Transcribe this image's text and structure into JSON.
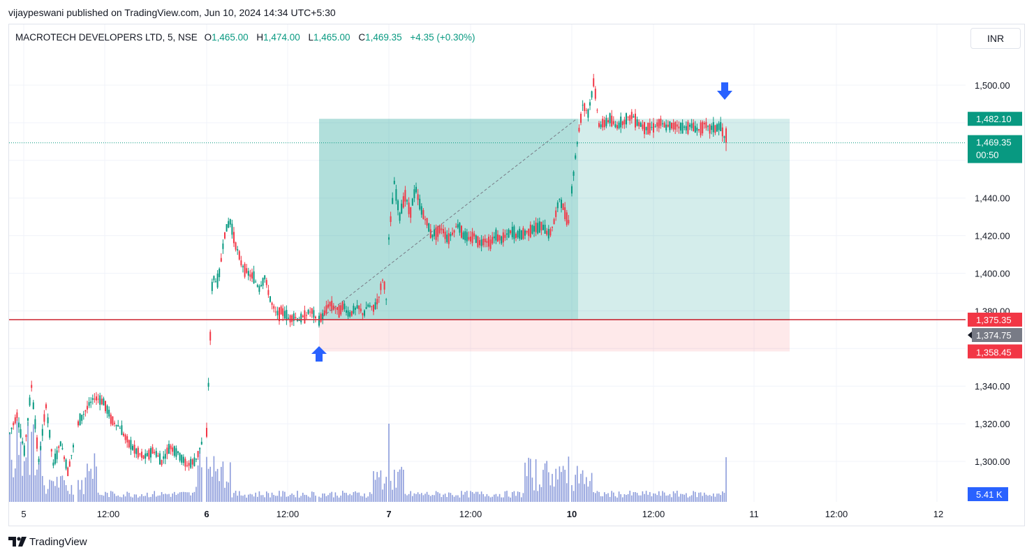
{
  "publisher_line": "vijaypeswani published on TradingView.com, Jun 10, 2024 14:34 UTC+5:30",
  "legend": {
    "symbol": "MACROTECH DEVELOPERS LTD, 5, NSE",
    "open_label": "O",
    "open": "1,465.00",
    "high_label": "H",
    "high": "1,474.00",
    "low_label": "L",
    "low": "1,465.00",
    "close_label": "C",
    "close": "1,469.35",
    "change": "+4.35 (+0.30%)"
  },
  "currency": "INR",
  "footer": {
    "brand": "TradingView",
    "icon": "tradingview-logo-icon"
  },
  "colors": {
    "up": "#089981",
    "down": "#f23645",
    "volume": "#6479cf",
    "accent": "#2962ff",
    "profit_zone": "#26a69a",
    "loss_zone": "#f7525f",
    "support_line": "#d0343f"
  },
  "chart_data": {
    "type": "candlestick",
    "x_axis": {
      "tick_labels": [
        "5",
        "12:00",
        "6",
        "12:00",
        "7",
        "12:00",
        "10",
        "12:00",
        "11",
        "12:00",
        "12"
      ],
      "bold_labels": [
        "6",
        "7",
        "10"
      ]
    },
    "y_axis": {
      "range": [
        1290,
        1510
      ],
      "tick_labels": [
        "1,500.00",
        "1,440.00",
        "1,420.00",
        "1,400.00",
        "1,380.00",
        "1,340.00",
        "1,320.00",
        "1,300.00"
      ],
      "tick_values": [
        1500,
        1440,
        1420,
        1400,
        1380,
        1340,
        1320,
        1300
      ],
      "partial_tick_label": "00"
    },
    "price_labels": [
      {
        "value": "1,482.10",
        "price": 1482.1,
        "color": "#089981"
      },
      {
        "value": "1,469.35",
        "sub": "00:50",
        "price": 1469.35,
        "color": "#089981"
      },
      {
        "value": "1,375.35",
        "price": 1375.35,
        "color": "#f23645"
      },
      {
        "value": "1,374.75",
        "price": 1374.75,
        "color": "#787b86"
      },
      {
        "value": "1,358.45",
        "price": 1358.45,
        "color": "#f23645"
      }
    ],
    "volume_label": "5.41 K",
    "last_price": 1469.35,
    "support_level": 1375.35,
    "long_position": {
      "entry": 1375.35,
      "target": 1482.1,
      "stop": 1358.45,
      "start_day": "6",
      "start_time": "14:20"
    },
    "annotations": [
      {
        "type": "arrow-up",
        "at": "entry",
        "color": "#2962ff"
      },
      {
        "type": "arrow-down",
        "at": "last",
        "color": "#2962ff"
      },
      {
        "type": "dashed-trend",
        "from": 1375.35,
        "to": 1482.1
      }
    ],
    "volume_series": {
      "name": "Volume",
      "peak": "5.41 K"
    },
    "price_path": [
      [
        1315,
        1325,
        1305,
        1340,
        1300,
        1330,
        1298,
        1310,
        1295,
        1312
      ],
      [
        1320,
        1328,
        1334,
        1332,
        1322,
        1318,
        1310,
        1305,
        1302,
        1306,
        1300,
        1308,
        1304,
        1298,
        1300,
        1312
      ],
      [
        1315,
        1398,
        1395,
        1420,
        1428,
        1415,
        1405,
        1400,
        1398,
        1392,
        1398,
        1385,
        1378,
        1380,
        1376,
        1377,
        1375,
        1378,
        1380,
        1374
      ],
      [
        1375,
        1378,
        1384,
        1382,
        1380,
        1383,
        1378,
        1380,
        1382,
        1378,
        1383,
        1381,
        1386,
        1398,
        1380
      ],
      [
        1418,
        1448,
        1430,
        1442,
        1432,
        1445,
        1434,
        1428,
        1420,
        1422,
        1424,
        1418,
        1422,
        1426,
        1420,
        1418,
        1420,
        1416,
        1418,
        1416,
        1420,
        1418,
        1420,
        1422,
        1420,
        1421,
        1422,
        1424,
        1424,
        1425,
        1420,
        1428,
        1440,
        1432,
        1425
      ],
      [
        1445,
        1470,
        1490,
        1485,
        1502,
        1478,
        1480,
        1482,
        1478,
        1480,
        1482,
        1484,
        1480,
        1478,
        1477,
        1478,
        1480,
        1478,
        1478,
        1479,
        1477,
        1478,
        1478,
        1476,
        1479,
        1477,
        1477,
        1478,
        1469
      ]
    ]
  }
}
